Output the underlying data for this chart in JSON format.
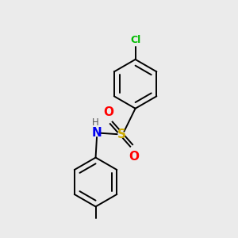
{
  "background_color": "#ebebeb",
  "atom_colors": {
    "C": "#000000",
    "H": "#555555",
    "N": "#0000ee",
    "O": "#ff0000",
    "S": "#ccaa00",
    "Cl": "#00bb00"
  },
  "line_color": "#000000",
  "line_width": 1.4,
  "figsize": [
    3.0,
    3.0
  ],
  "dpi": 100
}
